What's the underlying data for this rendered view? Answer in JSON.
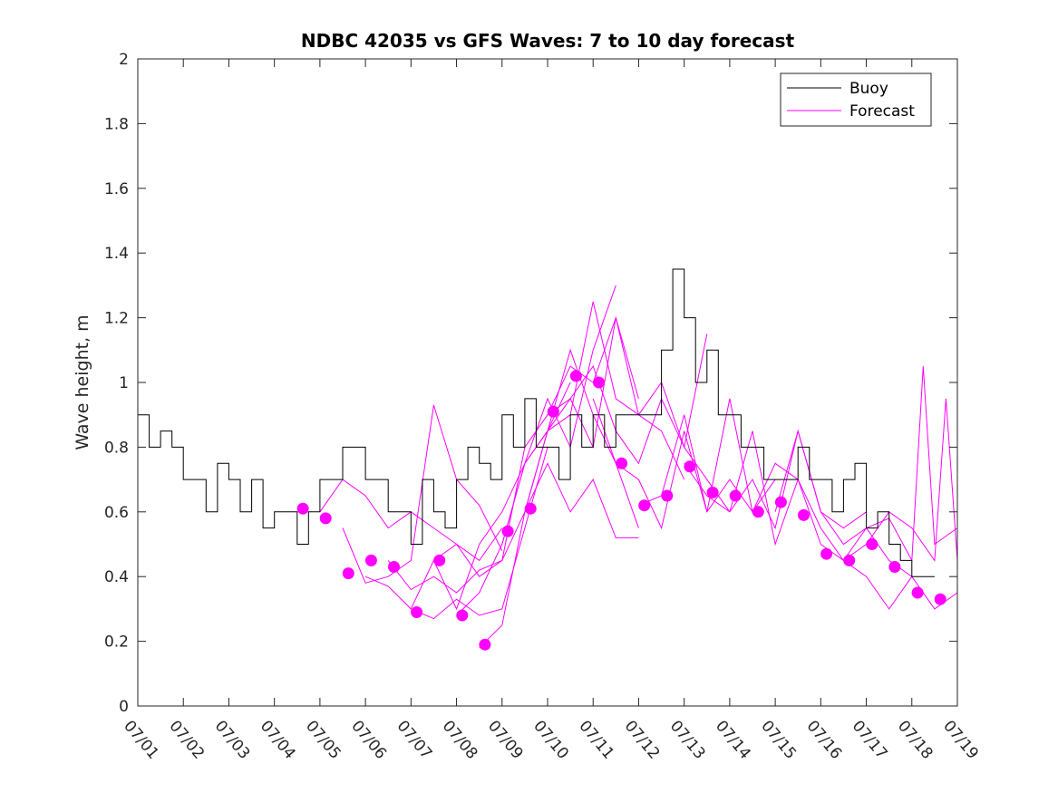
{
  "chart_data": {
    "type": "line",
    "title": "NDBC 42035 vs GFS Waves: 7 to 10 day forecast",
    "xlabel": "",
    "ylabel": "Wave height, m",
    "xlim": [
      "07/01",
      "07/19"
    ],
    "ylim": [
      0,
      2
    ],
    "x_ticks": [
      "07/01",
      "07/02",
      "07/03",
      "07/04",
      "07/05",
      "07/06",
      "07/07",
      "07/08",
      "07/09",
      "07/10",
      "07/11",
      "07/12",
      "07/13",
      "07/14",
      "07/15",
      "07/16",
      "07/17",
      "07/18",
      "07/19"
    ],
    "y_ticks": [
      "0",
      "0.2",
      "0.4",
      "0.6",
      "0.8",
      "1",
      "1.2",
      "1.4",
      "1.6",
      "1.8",
      "2"
    ],
    "grid": false,
    "legend": {
      "position": "top-right",
      "entries": [
        "Buoy",
        "Forecast"
      ]
    },
    "colors": {
      "buoy": "#000000",
      "forecast": "#ff00ff"
    },
    "series": [
      {
        "name": "Buoy",
        "x": [
          "07/01 00:00",
          "07/01 06:00",
          "07/01 12:00",
          "07/01 18:00",
          "07/02 00:00",
          "07/02 06:00",
          "07/02 12:00",
          "07/02 18:00",
          "07/03 00:00",
          "07/03 06:00",
          "07/03 12:00",
          "07/03 18:00",
          "07/04 00:00",
          "07/04 06:00",
          "07/04 12:00",
          "07/04 18:00",
          "07/05 00:00",
          "07/05 06:00",
          "07/05 12:00",
          "07/05 18:00",
          "07/06 00:00",
          "07/06 06:00",
          "07/06 12:00",
          "07/06 18:00",
          "07/07 00:00",
          "07/07 06:00",
          "07/07 12:00",
          "07/07 18:00",
          "07/08 00:00",
          "07/08 06:00",
          "07/08 12:00",
          "07/08 18:00",
          "07/09 00:00",
          "07/09 06:00",
          "07/09 12:00",
          "07/09 18:00",
          "07/10 00:00",
          "07/10 06:00",
          "07/10 12:00",
          "07/10 18:00",
          "07/11 00:00",
          "07/11 06:00",
          "07/11 12:00",
          "07/11 18:00",
          "07/12 00:00",
          "07/12 06:00",
          "07/12 12:00",
          "07/12 18:00",
          "07/13 00:00",
          "07/13 06:00",
          "07/13 12:00",
          "07/13 18:00",
          "07/14 00:00",
          "07/14 06:00",
          "07/14 12:00",
          "07/14 18:00",
          "07/15 00:00",
          "07/15 06:00",
          "07/15 12:00",
          "07/15 18:00",
          "07/16 00:00",
          "07/16 06:00",
          "07/16 12:00",
          "07/16 18:00",
          "07/17 00:00",
          "07/17 06:00",
          "07/17 12:00",
          "07/17 18:00",
          "07/18 00:00",
          "07/18 06:00"
        ],
        "y": [
          0.9,
          0.8,
          0.85,
          0.8,
          0.7,
          0.7,
          0.6,
          0.75,
          0.7,
          0.6,
          0.7,
          0.55,
          0.6,
          0.6,
          0.5,
          0.6,
          0.7,
          0.7,
          0.8,
          0.8,
          0.7,
          0.7,
          0.6,
          0.6,
          0.5,
          0.7,
          0.6,
          0.55,
          0.7,
          0.8,
          0.75,
          0.7,
          0.9,
          0.8,
          0.95,
          0.8,
          0.8,
          0.7,
          0.9,
          0.8,
          0.9,
          0.8,
          0.9,
          0.9,
          0.9,
          0.9,
          1.1,
          1.35,
          1.2,
          1.0,
          1.1,
          0.9,
          0.9,
          0.8,
          0.8,
          0.7,
          0.7,
          0.7,
          0.8,
          0.7,
          0.7,
          0.6,
          0.7,
          0.75,
          0.55,
          0.6,
          0.5,
          0.45,
          0.4,
          0.4
        ]
      },
      {
        "name": "Forecast",
        "markers": {
          "x": [
            "07/04 15:00",
            "07/05 03:00",
            "07/05 15:00",
            "07/06 03:00",
            "07/06 15:00",
            "07/07 03:00",
            "07/07 15:00",
            "07/08 03:00",
            "07/08 15:00",
            "07/09 03:00",
            "07/09 15:00",
            "07/10 03:00",
            "07/10 15:00",
            "07/11 03:00",
            "07/11 15:00",
            "07/12 03:00",
            "07/12 15:00",
            "07/13 03:00",
            "07/13 15:00",
            "07/14 03:00",
            "07/14 15:00",
            "07/15 03:00",
            "07/15 15:00",
            "07/16 03:00",
            "07/16 15:00",
            "07/17 03:00",
            "07/17 15:00",
            "07/18 03:00",
            "07/18 15:00"
          ],
          "y": [
            0.61,
            0.58,
            0.41,
            0.45,
            0.43,
            0.29,
            0.45,
            0.28,
            0.19,
            0.54,
            0.61,
            0.91,
            1.02,
            1.0,
            0.75,
            0.62,
            0.65,
            0.74,
            0.66,
            0.65,
            0.6,
            0.63,
            0.59,
            0.47,
            0.45,
            0.5,
            0.43,
            0.35,
            0.33
          ]
        },
        "runs": [
          {
            "x": [
              "07/05 00:00",
              "07/05 12:00",
              "07/06 00:00",
              "07/06 12:00",
              "07/07 00:00",
              "07/07 12:00",
              "07/08 00:00",
              "07/08 12:00",
              "07/09 00:00"
            ],
            "y": [
              0.6,
              0.7,
              0.65,
              0.55,
              0.6,
              0.55,
              0.5,
              0.45,
              0.55
            ]
          },
          {
            "x": [
              "07/05 12:00",
              "07/06 00:00",
              "07/06 12:00",
              "07/07 00:00",
              "07/07 12:00",
              "07/08 00:00",
              "07/08 12:00",
              "07/09 00:00"
            ],
            "y": [
              0.55,
              0.38,
              0.4,
              0.45,
              0.93,
              0.7,
              0.62,
              0.48
            ]
          },
          {
            "x": [
              "07/06 00:00",
              "07/06 12:00",
              "07/07 00:00",
              "07/07 12:00",
              "07/08 00:00",
              "07/08 12:00",
              "07/09 00:00",
              "07/09 12:00",
              "07/10 00:00"
            ],
            "y": [
              0.4,
              0.37,
              0.3,
              0.27,
              0.33,
              0.28,
              0.3,
              0.55,
              0.8
            ]
          },
          {
            "x": [
              "07/06 12:00",
              "07/07 00:00",
              "07/07 12:00",
              "07/08 00:00",
              "07/08 12:00",
              "07/09 00:00",
              "07/09 12:00",
              "07/10 00:00",
              "07/10 12:00"
            ],
            "y": [
              0.45,
              0.36,
              0.4,
              0.35,
              0.42,
              0.45,
              0.6,
              0.85,
              1.0
            ]
          },
          {
            "x": [
              "07/07 00:00",
              "07/07 12:00",
              "07/08 00:00",
              "07/08 12:00",
              "07/09 00:00",
              "07/09 12:00",
              "07/10 00:00",
              "07/10 12:00",
              "07/11 00:00",
              "07/11 12:00"
            ],
            "y": [
              0.3,
              0.45,
              0.3,
              0.5,
              0.6,
              0.75,
              0.95,
              0.8,
              1.1,
              1.3
            ]
          },
          {
            "x": [
              "07/07 12:00",
              "07/08 00:00",
              "07/08 12:00",
              "07/09 00:00",
              "07/09 12:00",
              "07/10 00:00",
              "07/10 12:00",
              "07/11 00:00",
              "07/11 12:00",
              "07/12 00:00"
            ],
            "y": [
              0.45,
              0.5,
              0.4,
              0.45,
              0.8,
              0.9,
              1.05,
              1.0,
              1.2,
              0.95
            ]
          },
          {
            "x": [
              "07/08 00:00",
              "07/08 12:00",
              "07/09 00:00",
              "07/09 12:00",
              "07/10 00:00",
              "07/10 12:00",
              "07/11 00:00",
              "07/11 12:00",
              "07/12 00:00"
            ],
            "y": [
              0.28,
              0.35,
              0.5,
              0.75,
              0.85,
              1.1,
              0.9,
              0.75,
              0.55
            ]
          },
          {
            "x": [
              "07/08 12:00",
              "07/09 00:00",
              "07/09 12:00",
              "07/10 00:00",
              "07/10 12:00",
              "07/11 00:00",
              "07/11 12:00",
              "07/12 00:00"
            ],
            "y": [
              0.18,
              0.25,
              0.6,
              0.75,
              0.6,
              0.7,
              0.52,
              0.52
            ]
          },
          {
            "x": [
              "07/09 00:00",
              "07/09 12:00",
              "07/10 00:00",
              "07/10 12:00",
              "07/11 00:00",
              "07/11 12:00",
              "07/12 00:00",
              "07/12 12:00",
              "07/13 00:00"
            ],
            "y": [
              0.5,
              0.75,
              0.85,
              0.95,
              0.8,
              1.2,
              0.9,
              0.85,
              0.7
            ]
          },
          {
            "x": [
              "07/09 12:00",
              "07/10 00:00",
              "07/10 12:00",
              "07/11 00:00",
              "07/11 12:00",
              "07/12 00:00",
              "07/12 12:00",
              "07/13 00:00",
              "07/13 12:00"
            ],
            "y": [
              0.6,
              0.85,
              0.9,
              1.25,
              0.95,
              0.9,
              1.0,
              0.8,
              1.15
            ]
          },
          {
            "x": [
              "07/10 00:00",
              "07/10 12:00",
              "07/11 00:00",
              "07/11 12:00",
              "07/12 00:00",
              "07/12 12:00",
              "07/13 00:00",
              "07/13 12:00",
              "07/14 00:00"
            ],
            "y": [
              0.9,
              0.95,
              1.05,
              0.85,
              0.75,
              0.95,
              0.8,
              0.7,
              0.6
            ]
          },
          {
            "x": [
              "07/11 00:00",
              "07/11 12:00",
              "07/12 00:00",
              "07/12 12:00",
              "07/13 00:00",
              "07/13 12:00",
              "07/14 00:00",
              "07/14 12:00",
              "07/15 00:00"
            ],
            "y": [
              0.95,
              0.75,
              0.7,
              0.55,
              0.85,
              0.6,
              0.7,
              0.6,
              0.7
            ]
          },
          {
            "x": [
              "07/12 00:00",
              "07/12 12:00",
              "07/13 00:00",
              "07/13 12:00",
              "07/14 00:00",
              "07/14 12:00",
              "07/15 00:00",
              "07/15 12:00",
              "07/16 00:00"
            ],
            "y": [
              0.62,
              0.65,
              0.9,
              0.6,
              0.95,
              0.6,
              0.75,
              0.7,
              0.5
            ]
          },
          {
            "x": [
              "07/13 00:00",
              "07/13 12:00",
              "07/14 00:00",
              "07/14 12:00",
              "07/15 00:00",
              "07/15 12:00",
              "07/16 00:00",
              "07/16 12:00",
              "07/17 00:00"
            ],
            "y": [
              0.75,
              0.65,
              0.6,
              0.7,
              0.55,
              0.85,
              0.6,
              0.55,
              0.6
            ]
          },
          {
            "x": [
              "07/14 00:00",
              "07/14 12:00",
              "07/15 00:00",
              "07/15 12:00",
              "07/16 00:00",
              "07/16 12:00",
              "07/17 00:00",
              "07/17 12:00",
              "07/18 00:00"
            ],
            "y": [
              0.6,
              0.85,
              0.5,
              0.7,
              0.55,
              0.45,
              0.4,
              0.3,
              0.4
            ]
          },
          {
            "x": [
              "07/15 00:00",
              "07/15 12:00",
              "07/16 00:00",
              "07/16 12:00",
              "07/17 00:00",
              "07/17 12:00",
              "07/18 00:00",
              "07/18 12:00",
              "07/19 00:00"
            ],
            "y": [
              0.6,
              0.85,
              0.6,
              0.5,
              0.55,
              0.45,
              0.4,
              0.3,
              0.35
            ]
          },
          {
            "x": [
              "07/16 00:00",
              "07/16 12:00",
              "07/17 00:00",
              "07/17 12:00",
              "07/18 00:00",
              "07/18 06:00",
              "07/18 12:00",
              "07/19 00:00"
            ],
            "y": [
              0.5,
              0.45,
              0.55,
              0.58,
              0.45,
              1.05,
              0.5,
              0.55
            ]
          },
          {
            "x": [
              "07/16 12:00",
              "07/17 00:00",
              "07/17 12:00",
              "07/18 00:00",
              "07/18 12:00",
              "07/18 18:00",
              "07/19 00:00"
            ],
            "y": [
              0.45,
              0.5,
              0.6,
              0.55,
              0.45,
              0.95,
              0.45
            ]
          }
        ]
      }
    ]
  }
}
